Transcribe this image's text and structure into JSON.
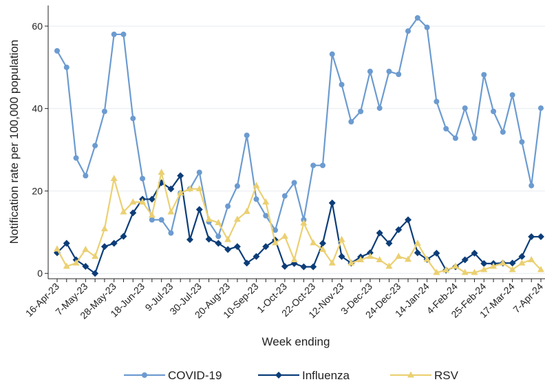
{
  "chart_data": {
    "type": "line",
    "xlabel": "Week ending",
    "ylabel": "Notification rate per 100,000 population",
    "categories": [
      "16-Apr-23",
      null,
      null,
      "7-May-23",
      null,
      null,
      "28-May-23",
      null,
      null,
      "18-Jun-23",
      null,
      null,
      "9-Jul-23",
      null,
      null,
      "30-Jul-23",
      null,
      null,
      "20-Aug-23",
      null,
      null,
      "10-Sep-23",
      null,
      null,
      "1-Oct-23",
      null,
      null,
      "22-Oct-23",
      null,
      null,
      "12-Nov-23",
      null,
      null,
      "3-Dec-23",
      null,
      null,
      "24-Dec-23",
      null,
      null,
      "14-Jan-24",
      null,
      null,
      "4-Feb-24",
      null,
      null,
      "25-Feb-24",
      null,
      null,
      "17-Mar-24",
      null,
      null,
      "7-Apr-24"
    ],
    "ylim": [
      -1.3,
      65
    ],
    "yticks": [
      0,
      20,
      40,
      60
    ],
    "grid": true,
    "legend": "bottom",
    "series": [
      {
        "name": "COVID-19",
        "color": "#6c9bd0",
        "marker": "circle",
        "values": [
          54,
          50,
          28,
          23.7,
          31,
          39.3,
          58,
          58,
          37.6,
          23,
          13,
          13,
          9.8,
          19.5,
          20.5,
          24.5,
          12.5,
          9,
          16.3,
          21.2,
          33.5,
          18,
          14,
          10.5,
          18.8,
          22,
          13,
          26.2,
          26.2,
          53.2,
          45.8,
          36.8,
          39.3,
          49,
          40.1,
          49,
          48.3,
          58.8,
          62,
          59.7,
          41.7,
          35.1,
          32.8,
          40.1,
          32.8,
          48.2,
          39.3,
          34.3,
          43.3,
          31.9,
          21.3,
          40.1
        ]
      },
      {
        "name": "Influenza",
        "color": "#0c3d78",
        "marker": "diamond",
        "values": [
          5,
          7.3,
          3.3,
          1.7,
          0,
          6.5,
          7.3,
          9,
          14.7,
          18,
          18,
          22,
          20.5,
          23.7,
          8.2,
          15.5,
          8.3,
          7.3,
          5.8,
          6.5,
          2.5,
          4.1,
          6.5,
          8.1,
          1.7,
          2.4,
          1.6,
          1.6,
          7.3,
          17.1,
          4.1,
          2.5,
          4,
          5,
          9.8,
          7.3,
          10.6,
          13,
          5,
          3.4,
          4.9,
          0.8,
          1.6,
          3.3,
          4.9,
          2.4,
          2.4,
          2.5,
          2.5,
          4.1,
          8.9,
          8.9
        ]
      },
      {
        "name": "RSV",
        "color": "#ebd072",
        "marker": "triangle",
        "values": [
          5.9,
          1.7,
          2.5,
          5.8,
          4.1,
          10.8,
          23,
          14.9,
          17.3,
          17.3,
          14.1,
          24.5,
          14.9,
          19.5,
          20.5,
          20.5,
          13.1,
          12.3,
          8.2,
          13.1,
          15,
          21.3,
          17.3,
          7.4,
          9,
          3.3,
          12.2,
          7.4,
          5.8,
          2.5,
          8.2,
          2.5,
          3.3,
          4.1,
          3.3,
          1.7,
          4.1,
          3.4,
          7.3,
          3.4,
          0.2,
          0.8,
          1.7,
          0.2,
          0.2,
          0.9,
          1.7,
          2.5,
          0.9,
          2.5,
          3.3,
          0.9
        ]
      }
    ]
  }
}
